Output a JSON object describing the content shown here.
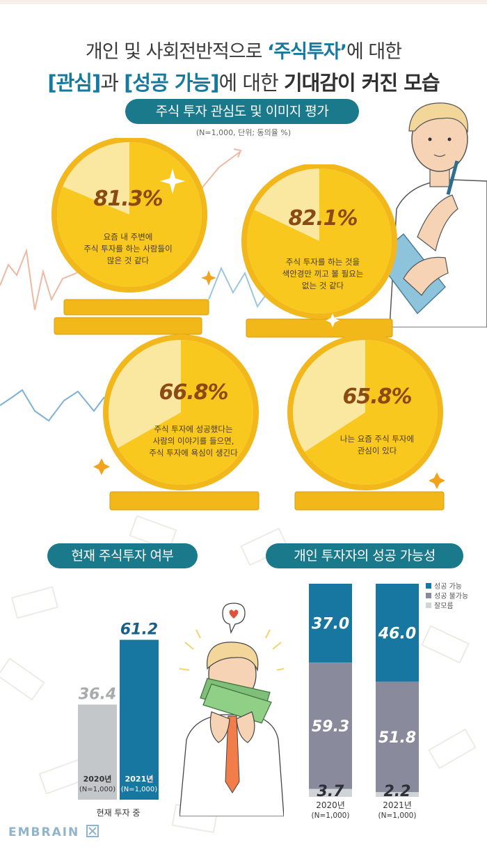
{
  "header": {
    "line1_prefix": "개인 및 사회전반적으로 ",
    "line1_highlight": "‘주식투자’",
    "line1_suffix": "에 대한",
    "line2_part1": "[관심]",
    "line2_part2": "과 ",
    "line2_part3": "[성공 가능]",
    "line2_part4": "에 대한 ",
    "line2_part5": "기대감이 커진 모습"
  },
  "section1": {
    "title": "주식 투자 관심도 및 이미지 평가",
    "note": "(N=1,000, 단위; 동의율 %)"
  },
  "section2": {
    "title": "현재 주식투자 여부"
  },
  "section3": {
    "title": "개인 투자자의 성공 가능성"
  },
  "brand": {
    "name": "EMBRAIN"
  },
  "colors": {
    "teal_pill": "#1a7a8c",
    "blue_bar": "#1877a0",
    "gray_bar": "#c3c7c9",
    "purple_gray": "#898a9c",
    "light_gray": "#cfd4d6",
    "coin_yellow": "#f7c51b",
    "coin_light": "#fbe8a0"
  },
  "chart_data": [
    {
      "type": "pie",
      "title": "주식 투자 관심도 및 이미지 평가",
      "unit": "동의율 %",
      "items": [
        {
          "value": 81.3,
          "label": "81.3%",
          "text": [
            "요즘 내 주변에",
            "주식 투자를 하는 사람들이",
            "많은 것 같다"
          ]
        },
        {
          "value": 82.1,
          "label": "82.1%",
          "text": [
            "주식 투자를 하는 것을",
            "색안경만 끼고 볼 필요는",
            "없는 것 같다"
          ]
        },
        {
          "value": 66.8,
          "label": "66.8%",
          "text": [
            "주식 투자에 성공했다는",
            "사람의 이야기를 들으면,",
            "주식 투자에 욕심이 생긴다"
          ]
        },
        {
          "value": 65.8,
          "label": "65.8%",
          "text": [
            "나는 요즘 주식 투자에",
            "관심이 있다"
          ]
        }
      ]
    },
    {
      "type": "bar",
      "title": "현재 주식투자 여부",
      "categories": [
        "2020년",
        "2021년"
      ],
      "sublabels": [
        "(N=1,000)",
        "(N=1,000)"
      ],
      "values": [
        36.4,
        61.2
      ],
      "value_labels": [
        "36.4",
        "61.2"
      ],
      "xlabel": "현재 투자 중",
      "ylim": [
        0,
        100
      ]
    },
    {
      "type": "bar",
      "stacked": true,
      "title": "개인 투자자의 성공 가능성",
      "categories": [
        "2020년",
        "2021년"
      ],
      "sublabels": [
        "(N=1,000)",
        "(N=1,000)"
      ],
      "series": [
        {
          "name": "성공 가능",
          "values": [
            37.0,
            46.0
          ],
          "labels": [
            "37.0",
            "46.0"
          ]
        },
        {
          "name": "성공 불가능",
          "values": [
            59.3,
            51.8
          ],
          "labels": [
            "59.3",
            "51.8"
          ]
        },
        {
          "name": "잘모름",
          "values": [
            3.7,
            2.2
          ],
          "labels": [
            "3.7",
            "2.2"
          ]
        }
      ],
      "legend": "top-right"
    }
  ]
}
